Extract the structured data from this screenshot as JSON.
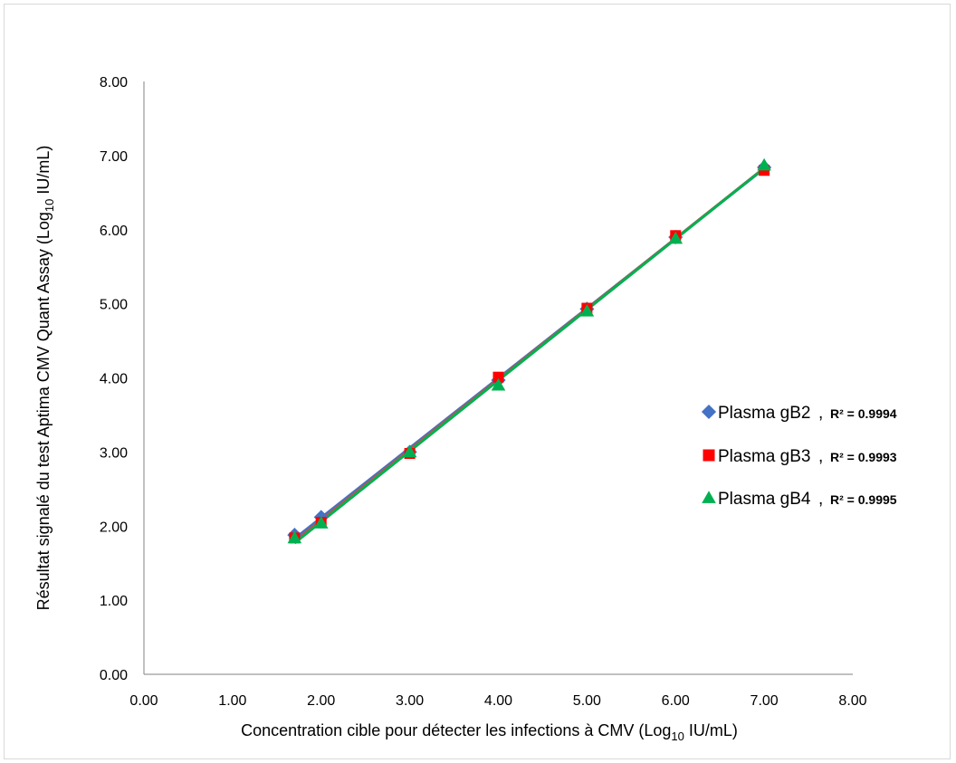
{
  "chart_data": {
    "type": "scatter",
    "title": "",
    "xlabel": "Concentration cible pour détecter les infections à CMV (Log",
    "xlabel_sub": "10",
    "xlabel_end": " IU/mL)",
    "ylabel": "Résultat signalé du test Aptima CMV Quant Assay (Log",
    "ylabel_sub": "10",
    "ylabel_end": " IU/mL)",
    "xlim": [
      0,
      8
    ],
    "ylim": [
      0,
      8
    ],
    "x_ticks": [
      "0.00",
      "1.00",
      "2.00",
      "3.00",
      "4.00",
      "5.00",
      "6.00",
      "7.00",
      "8.00"
    ],
    "y_ticks": [
      "0.00",
      "1.00",
      "2.00",
      "3.00",
      "4.00",
      "5.00",
      "6.00",
      "7.00",
      "8.00"
    ],
    "grid": false,
    "legend_position": "right",
    "series": [
      {
        "name": "Plasma gB2",
        "r2_label": "R² = 0.9994",
        "marker": "diamond",
        "color": "#4472c4",
        "line_color": "#4472c4",
        "x": [
          1.7,
          2.0,
          3.0,
          4.0,
          5.0,
          6.0,
          7.0
        ],
        "y": [
          1.88,
          2.12,
          3.0,
          3.97,
          4.93,
          5.9,
          6.84
        ]
      },
      {
        "name": "Plasma gB3",
        "r2_label": "R² = 0.9993",
        "marker": "square",
        "color": "#ff0000",
        "line_color": "#c0504d",
        "x": [
          1.7,
          2.0,
          3.0,
          4.0,
          5.0,
          6.0,
          7.0
        ],
        "y": [
          1.84,
          2.05,
          2.98,
          4.01,
          4.94,
          5.92,
          6.8
        ]
      },
      {
        "name": "Plasma gB4",
        "r2_label": "R² = 0.9995",
        "marker": "triangle",
        "color": "#00b050",
        "line_color": "#00b050",
        "x": [
          1.7,
          2.0,
          3.0,
          4.0,
          5.0,
          6.0,
          7.0
        ],
        "y": [
          1.84,
          2.04,
          3.0,
          3.9,
          4.9,
          5.88,
          6.87
        ]
      }
    ]
  }
}
